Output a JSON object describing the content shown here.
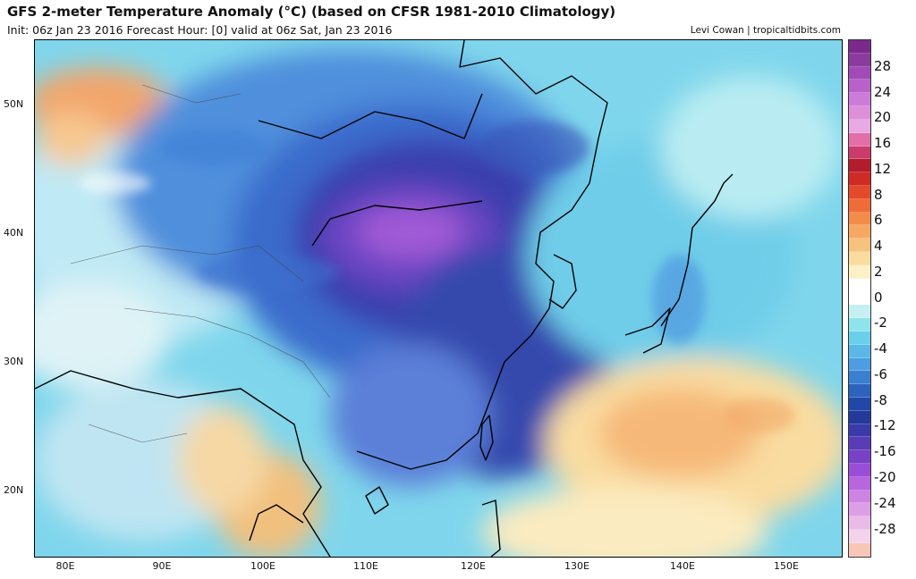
{
  "header": {
    "title": "GFS 2-meter Temperature Anomaly (°C) (based on CFSR 1981-2010 Climatology)",
    "subtitle": "Init: 06z Jan 23 2016   Forecast Hour: [0]   valid at 06z Sat, Jan 23 2016",
    "credit": "Levi Cowan | tropicaltidbits.com"
  },
  "map": {
    "lat_labels": [
      "50N",
      "40N",
      "30N",
      "20N"
    ],
    "lon_labels": [
      "80E",
      "90E",
      "100E",
      "110E",
      "120E",
      "130E",
      "140E",
      "150E"
    ]
  },
  "colorbar": {
    "labels": [
      "28",
      "24",
      "20",
      "16",
      "12",
      "8",
      "6",
      "4",
      "2",
      "0",
      "-2",
      "-4",
      "-6",
      "-8",
      "-12",
      "-16",
      "-20",
      "-24",
      "-28"
    ],
    "colors": [
      "#7b2a8c",
      "#8b3a9e",
      "#a24bb6",
      "#b861c9",
      "#cd7bd8",
      "#de8fda",
      "#e9a9e2",
      "#e26fa8",
      "#cc3b6d",
      "#b31c2a",
      "#cf2a24",
      "#e34a2a",
      "#ef6c38",
      "#f38c4a",
      "#f6a862",
      "#f7c27e",
      "#f9dc9e",
      "#fbf1c4",
      "#ffffff",
      "#ffffff",
      "#c5f0f2",
      "#8fe3ea",
      "#6ad0ea",
      "#5bb7e8",
      "#4c9ee0",
      "#3a7fd0",
      "#2d63bd",
      "#2148a7",
      "#243a98",
      "#3a3aa8",
      "#5a3cb6",
      "#7841c6",
      "#9a4ed6",
      "#b766de",
      "#cc84e2",
      "#dc9fe6",
      "#e9bbe9",
      "#f3d3ec",
      "#f8c6b6"
    ],
    "accent": "#7b2a8c"
  }
}
